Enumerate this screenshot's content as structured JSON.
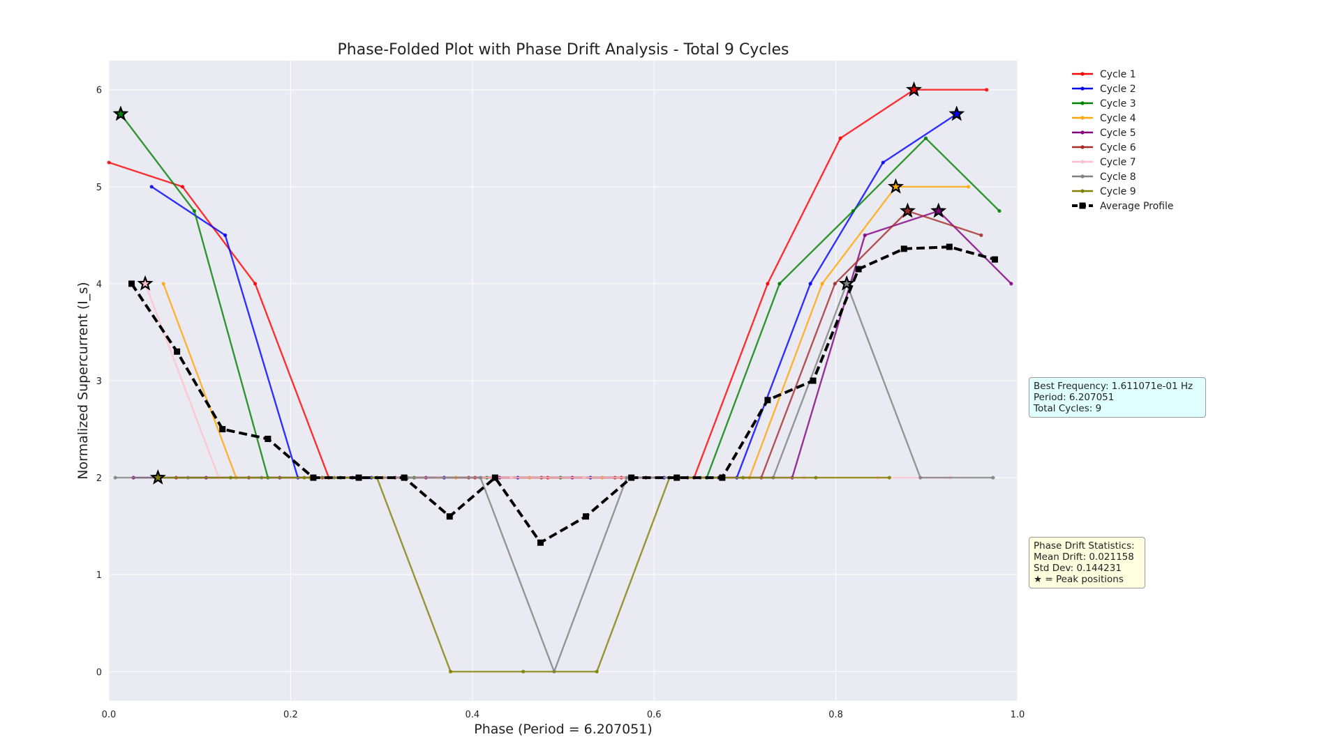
{
  "chart_data": {
    "type": "line",
    "title": "Phase-Folded Plot with Phase Drift Analysis - Total 9 Cycles",
    "xlabel": "Phase (Period = 6.207051)",
    "ylabel": "Normalized Supercurrent (I_s)",
    "xlim": [
      0,
      1
    ],
    "ylim": [
      -0.3,
      6.3
    ],
    "xticks": [
      "0.0",
      "0.2",
      "0.4",
      "0.6",
      "0.8",
      "1.0"
    ],
    "yticks": [
      "0",
      "1",
      "2",
      "3",
      "4",
      "5",
      "6"
    ],
    "grid": true,
    "legend_position": "outside-right",
    "series": [
      {
        "name": "Cycle 1",
        "color": "#ff0000",
        "x": [
          0.0,
          0.081,
          0.161,
          0.242,
          0.322,
          0.403,
          0.483,
          0.564,
          0.644,
          0.725,
          0.805,
          0.886,
          0.966
        ],
        "y": [
          5.25,
          5.0,
          4.0,
          2.0,
          2.0,
          2.0,
          2.0,
          2.0,
          2.0,
          4.0,
          5.5,
          6.0,
          6.0
        ],
        "peak": [
          0.886,
          6.0
        ]
      },
      {
        "name": "Cycle 2",
        "color": "#0000ff",
        "x": [
          0.047,
          0.128,
          0.208,
          0.289,
          0.369,
          0.45,
          0.53,
          0.611,
          0.691,
          0.772,
          0.852,
          0.933
        ],
        "y": [
          5.0,
          4.5,
          2.0,
          2.0,
          2.0,
          2.0,
          2.0,
          2.0,
          2.0,
          4.0,
          5.25,
          5.75
        ],
        "peak": [
          0.933,
          5.75
        ]
      },
      {
        "name": "Cycle 3",
        "color": "#008000",
        "x": [
          0.013,
          0.094,
          0.175,
          0.255,
          0.336,
          0.416,
          0.497,
          0.577,
          0.658,
          0.738,
          0.819,
          0.899,
          0.98
        ],
        "y": [
          5.75,
          4.75,
          2.0,
          2.0,
          2.0,
          2.0,
          2.0,
          2.0,
          2.0,
          4.0,
          4.75,
          5.5,
          4.75
        ],
        "peak": [
          0.013,
          5.75
        ]
      },
      {
        "name": "Cycle 4",
        "color": "#ffa500",
        "x": [
          0.06,
          0.14,
          0.221,
          0.302,
          0.382,
          0.463,
          0.543,
          0.624,
          0.705,
          0.785,
          0.866,
          0.946
        ],
        "y": [
          4.0,
          2.0,
          2.0,
          2.0,
          2.0,
          2.0,
          2.0,
          2.0,
          2.0,
          4.0,
          5.0,
          5.0
        ],
        "peak": [
          0.866,
          5.0
        ]
      },
      {
        "name": "Cycle 5",
        "color": "#800080",
        "x": [
          0.027,
          0.107,
          0.188,
          0.268,
          0.349,
          0.43,
          0.51,
          0.591,
          0.671,
          0.752,
          0.832,
          0.913,
          0.993
        ],
        "y": [
          2.0,
          2.0,
          2.0,
          2.0,
          2.0,
          2.0,
          2.0,
          2.0,
          2.0,
          2.0,
          4.5,
          4.75,
          4.0
        ],
        "peak": [
          0.913,
          4.75
        ]
      },
      {
        "name": "Cycle 6",
        "color": "#a52a2a",
        "x": [
          0.074,
          0.154,
          0.235,
          0.315,
          0.396,
          0.476,
          0.557,
          0.637,
          0.718,
          0.799,
          0.879,
          0.96
        ],
        "y": [
          2.0,
          2.0,
          2.0,
          2.0,
          2.0,
          2.0,
          2.0,
          2.0,
          2.0,
          4.0,
          4.75,
          4.5
        ],
        "peak": [
          0.879,
          4.75
        ]
      },
      {
        "name": "Cycle 7",
        "color": "#ffc0cb",
        "x": [
          0.04,
          0.121,
          0.201,
          0.282,
          0.362,
          0.443,
          0.523,
          0.604,
          0.685,
          0.765,
          0.846,
          0.926
        ],
        "y": [
          4.0,
          2.0,
          2.0,
          2.0,
          2.0,
          2.0,
          2.0,
          2.0,
          2.0,
          2.0,
          2.0,
          2.0
        ],
        "peak": [
          0.04,
          4.0
        ]
      },
      {
        "name": "Cycle 8",
        "color": "#808080",
        "x": [
          0.007,
          0.087,
          0.168,
          0.248,
          0.329,
          0.409,
          0.49,
          0.57,
          0.651,
          0.731,
          0.812,
          0.893,
          0.973
        ],
        "y": [
          2.0,
          2.0,
          2.0,
          2.0,
          2.0,
          2.0,
          0.0,
          2.0,
          2.0,
          2.0,
          4.0,
          2.0,
          2.0
        ],
        "peak": [
          0.812,
          4.0
        ]
      },
      {
        "name": "Cycle 9",
        "color": "#808000",
        "x": [
          0.054,
          0.134,
          0.215,
          0.295,
          0.376,
          0.456,
          0.537,
          0.617,
          0.698,
          0.778,
          0.859
        ],
        "y": [
          2.0,
          2.0,
          2.0,
          2.0,
          0.0,
          0.0,
          0.0,
          2.0,
          2.0,
          2.0,
          2.0
        ],
        "peak": [
          0.054,
          2.0
        ]
      },
      {
        "name": "Average Profile",
        "color": "#000000",
        "dashed": true,
        "x": [
          0.025,
          0.075,
          0.125,
          0.175,
          0.225,
          0.275,
          0.325,
          0.375,
          0.425,
          0.475,
          0.525,
          0.575,
          0.625,
          0.675,
          0.725,
          0.775,
          0.825,
          0.875,
          0.925,
          0.975
        ],
        "y": [
          4.0,
          3.3,
          2.5,
          2.4,
          2.0,
          2.0,
          2.0,
          1.6,
          2.0,
          1.33,
          1.6,
          2.0,
          2.0,
          2.0,
          2.8,
          3.0,
          4.15,
          4.36,
          4.38,
          4.25
        ]
      }
    ]
  },
  "info_box": {
    "line1": "Best Frequency: 1.611071e-01 Hz",
    "line2": "Period: 6.207051",
    "line3": "Total Cycles: 9"
  },
  "drift_box": {
    "line1": "Phase Drift Statistics:",
    "line2": "Mean Drift: 0.021158",
    "line3": "Std Dev: 0.144231",
    "line4": "★ = Peak positions"
  }
}
